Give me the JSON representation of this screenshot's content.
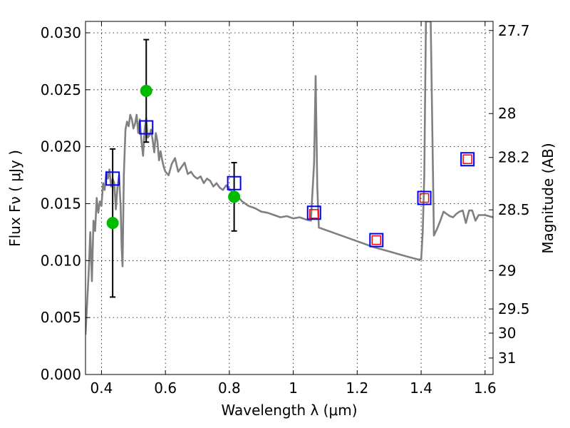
{
  "chart_data": {
    "type": "scatter",
    "xlabel": "Wavelength  λ (μm)",
    "ylabel": "Flux  Fν  ( μJy )",
    "y2label": "Magnitude (AB)",
    "xlim": [
      0.35,
      1.625
    ],
    "ylim": [
      0.0,
      0.031
    ],
    "grid": true,
    "x_ticks": [
      0.4,
      0.6,
      0.8,
      1.0,
      1.2,
      1.4,
      1.6
    ],
    "x_tick_labels": [
      "0.4",
      "0.6",
      "0.8",
      "1",
      "1.2",
      "1.4",
      "1.6"
    ],
    "y_ticks": [
      0.0,
      0.005,
      0.01,
      0.015,
      0.02,
      0.025,
      0.03
    ],
    "y_tick_labels": [
      "0.000",
      "0.005",
      "0.010",
      "0.015",
      "0.020",
      "0.025",
      "0.030"
    ],
    "y2_ticks": [
      27.7,
      28.0,
      28.2,
      28.5,
      29.0,
      29.5,
      30.0,
      31.0
    ],
    "y2_tick_labels": [
      "27.7",
      "28",
      "28.2",
      "28.5",
      "29",
      "29.5",
      "30",
      "31"
    ],
    "series": [
      {
        "kind": "line",
        "color": "#808080",
        "x": [
          0.35,
          0.36,
          0.365,
          0.37,
          0.375,
          0.38,
          0.385,
          0.39,
          0.395,
          0.4,
          0.405,
          0.41,
          0.415,
          0.42,
          0.425,
          0.43,
          0.435,
          0.44,
          0.445,
          0.45,
          0.455,
          0.46,
          0.463,
          0.466,
          0.47,
          0.475,
          0.48,
          0.485,
          0.49,
          0.495,
          0.5,
          0.505,
          0.51,
          0.515,
          0.52,
          0.525,
          0.53,
          0.535,
          0.54,
          0.545,
          0.55,
          0.555,
          0.56,
          0.565,
          0.57,
          0.575,
          0.58,
          0.585,
          0.59,
          0.595,
          0.6,
          0.61,
          0.62,
          0.63,
          0.64,
          0.65,
          0.66,
          0.67,
          0.68,
          0.69,
          0.7,
          0.71,
          0.72,
          0.73,
          0.74,
          0.75,
          0.76,
          0.77,
          0.78,
          0.79,
          0.8,
          0.81,
          0.82,
          0.84,
          0.86,
          0.88,
          0.9,
          0.92,
          0.94,
          0.96,
          0.98,
          1.0,
          1.02,
          1.04,
          1.055,
          1.065,
          1.07,
          1.075,
          1.08,
          1.1,
          1.15,
          1.2,
          1.25,
          1.3,
          1.35,
          1.39,
          1.4,
          1.405,
          1.41,
          1.415,
          1.42,
          1.43,
          1.44,
          1.45,
          1.46,
          1.47,
          1.48,
          1.49,
          1.5,
          1.51,
          1.52,
          1.53,
          1.54,
          1.55,
          1.56,
          1.57,
          1.58,
          1.6,
          1.625
        ],
        "y": [
          0.0035,
          0.009,
          0.0125,
          0.0082,
          0.0135,
          0.0126,
          0.0155,
          0.0142,
          0.0152,
          0.0148,
          0.0168,
          0.0162,
          0.0178,
          0.0172,
          0.018,
          0.0165,
          0.0172,
          0.0168,
          0.0145,
          0.0165,
          0.0175,
          0.0148,
          0.0112,
          0.0095,
          0.0175,
          0.0215,
          0.0222,
          0.0218,
          0.0228,
          0.0224,
          0.0216,
          0.022,
          0.0228,
          0.0212,
          0.0224,
          0.0205,
          0.0192,
          0.0215,
          0.0225,
          0.0208,
          0.021,
          0.0215,
          0.0206,
          0.0195,
          0.0212,
          0.0205,
          0.0188,
          0.0196,
          0.0188,
          0.0182,
          0.0178,
          0.0175,
          0.0185,
          0.019,
          0.0178,
          0.0182,
          0.0186,
          0.0176,
          0.0178,
          0.0174,
          0.0172,
          0.0174,
          0.0168,
          0.0172,
          0.017,
          0.0165,
          0.0168,
          0.0164,
          0.0162,
          0.0166,
          0.0163,
          0.016,
          0.0158,
          0.0152,
          0.0148,
          0.0146,
          0.0143,
          0.0142,
          0.014,
          0.0138,
          0.0139,
          0.0137,
          0.0138,
          0.0136,
          0.0135,
          0.0185,
          0.0262,
          0.0165,
          0.0129,
          0.0127,
          0.0122,
          0.0117,
          0.0112,
          0.0108,
          0.0104,
          0.0101,
          0.0101,
          0.0125,
          0.0175,
          0.031,
          0.031,
          0.031,
          0.0122,
          0.0128,
          0.0135,
          0.0143,
          0.0141,
          0.0139,
          0.0138,
          0.0141,
          0.0143,
          0.0144,
          0.0133,
          0.0144,
          0.0144,
          0.0135,
          0.014,
          0.014,
          0.0138
        ]
      },
      {
        "kind": "points",
        "color": "#00bb00",
        "marker": "circle",
        "x": [
          0.435,
          0.54,
          0.815
        ],
        "y": [
          0.0133,
          0.0249,
          0.0156
        ],
        "yerr": [
          0.0065,
          0.0045,
          0.003
        ]
      },
      {
        "kind": "points",
        "color": "#0000ff",
        "marker": "open-square",
        "x": [
          0.435,
          0.54,
          0.815,
          1.065,
          1.26,
          1.41,
          1.545
        ],
        "y": [
          0.0172,
          0.0217,
          0.0168,
          0.0142,
          0.0118,
          0.0155,
          0.0189
        ]
      },
      {
        "kind": "points",
        "color": "#ff0000",
        "marker": "open-square-small",
        "x": [
          1.065,
          1.26,
          1.41,
          1.545
        ],
        "y": [
          0.0141,
          0.0118,
          0.0155,
          0.0189
        ]
      }
    ]
  }
}
